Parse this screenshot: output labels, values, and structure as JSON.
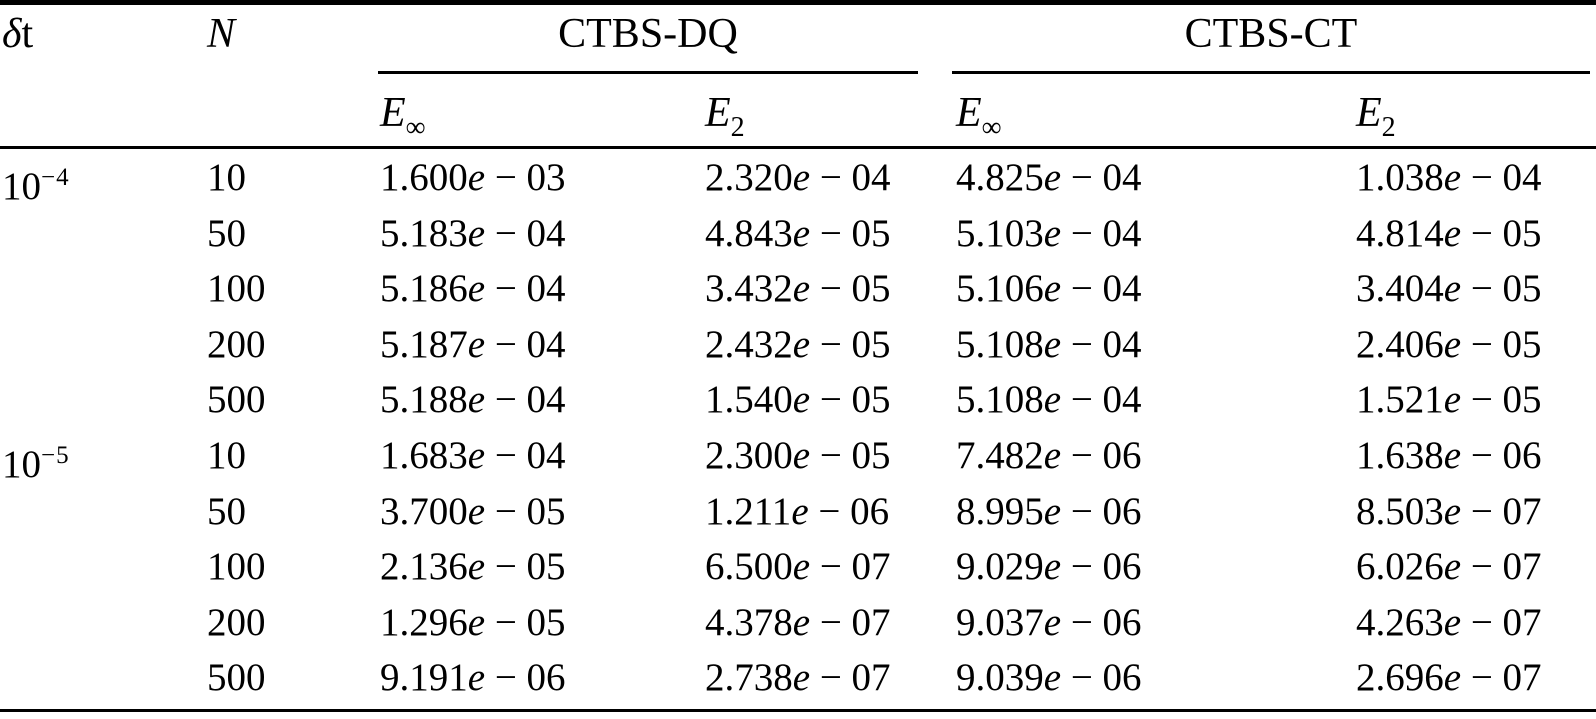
{
  "table": {
    "headers": {
      "dt_delta": "δ",
      "dt_t": "t",
      "n": "N",
      "group_dq": "CTBS-DQ",
      "group_ct": "CTBS-CT",
      "sub_e_base": "E",
      "sub_inf": "∞",
      "sub_two": "2"
    },
    "sci_e": "e",
    "rows": [
      {
        "dt": "10",
        "dt_exp": "-4",
        "n": "10",
        "dq_einf": "1.600e-03",
        "dq_e2": "2.320e-04",
        "ct_einf": "4.825e-04",
        "ct_e2": "1.038e-04"
      },
      {
        "dt": "",
        "dt_exp": "",
        "n": "50",
        "dq_einf": "5.183e-04",
        "dq_e2": "4.843e-05",
        "ct_einf": "5.103e-04",
        "ct_e2": "4.814e-05"
      },
      {
        "dt": "",
        "dt_exp": "",
        "n": "100",
        "dq_einf": "5.186e-04",
        "dq_e2": "3.432e-05",
        "ct_einf": "5.106e-04",
        "ct_e2": "3.404e-05"
      },
      {
        "dt": "",
        "dt_exp": "",
        "n": "200",
        "dq_einf": "5.187e-04",
        "dq_e2": "2.432e-05",
        "ct_einf": "5.108e-04",
        "ct_e2": "2.406e-05"
      },
      {
        "dt": "",
        "dt_exp": "",
        "n": "500",
        "dq_einf": "5.188e-04",
        "dq_e2": "1.540e-05",
        "ct_einf": "5.108e-04",
        "ct_e2": "1.521e-05"
      },
      {
        "dt": "10",
        "dt_exp": "-5",
        "n": "10",
        "dq_einf": "1.683e-04",
        "dq_e2": "2.300e-05",
        "ct_einf": "7.482e-06",
        "ct_e2": "1.638e-06"
      },
      {
        "dt": "",
        "dt_exp": "",
        "n": "50",
        "dq_einf": "3.700e-05",
        "dq_e2": "1.211e-06",
        "ct_einf": "8.995e-06",
        "ct_e2": "8.503e-07"
      },
      {
        "dt": "",
        "dt_exp": "",
        "n": "100",
        "dq_einf": "2.136e-05",
        "dq_e2": "6.500e-07",
        "ct_einf": "9.029e-06",
        "ct_e2": "6.026e-07"
      },
      {
        "dt": "",
        "dt_exp": "",
        "n": "200",
        "dq_einf": "1.296e-05",
        "dq_e2": "4.378e-07",
        "ct_einf": "9.037e-06",
        "ct_e2": "4.263e-07"
      },
      {
        "dt": "",
        "dt_exp": "",
        "n": "500",
        "dq_einf": "9.191e-06",
        "dq_e2": "2.738e-07",
        "ct_einf": "9.039e-06",
        "ct_e2": "2.696e-07"
      }
    ]
  }
}
